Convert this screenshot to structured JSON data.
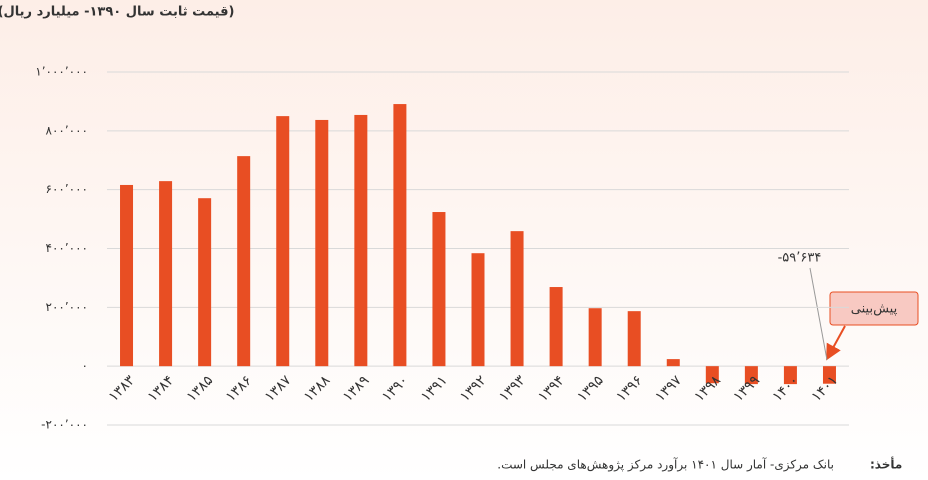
{
  "chart_data": {
    "type": "bar",
    "title": "(قیمت ثابت سال ۱۳۹۰- میلیارد ریال)",
    "categories": [
      "۱۳۸۳",
      "۱۳۸۴",
      "۱۳۸۵",
      "۱۳۸۶",
      "۱۳۸۷",
      "۱۳۸۸",
      "۱۳۸۹",
      "۱۳۹۰",
      "۱۳۹۱",
      "۱۳۹۲",
      "۱۳۹۳",
      "۱۳۹۴",
      "۱۳۹۵",
      "۱۳۹۶",
      "۱۳۹۷",
      "۱۳۹۸",
      "۱۳۹۹",
      "۱۴۰۰",
      "۱۴۰۱"
    ],
    "values": [
      616000,
      629000,
      571000,
      714000,
      850000,
      837000,
      854000,
      891000,
      524000,
      384000,
      459000,
      269000,
      197000,
      187000,
      24000,
      -58000,
      -61000,
      -61000,
      -59634
    ],
    "value_labels": [
      null,
      null,
      null,
      null,
      null,
      null,
      null,
      null,
      null,
      null,
      null,
      null,
      null,
      null,
      null,
      null,
      null,
      null,
      "-۵۹’۶۳۴"
    ],
    "color": "#e84e23",
    "ylim": [
      -200000,
      1000000
    ],
    "yticks": [
      {
        "value": -200000,
        "label": "-۲۰۰’۰۰۰"
      },
      {
        "value": 0,
        "label": "۰"
      },
      {
        "value": 200000,
        "label": "۲۰۰’۰۰۰"
      },
      {
        "value": 400000,
        "label": "۴۰۰’۰۰۰"
      },
      {
        "value": 600000,
        "label": "۶۰۰’۰۰۰"
      },
      {
        "value": 800000,
        "label": "۸۰۰’۰۰۰"
      },
      {
        "value": 1000000,
        "label": "۱’۰۰۰’۰۰۰"
      }
    ],
    "grid": true,
    "callout": "پیش‌بینی",
    "source_label": "مأخذ:",
    "source": "بانک مرکزی- آمار سال ۱۴۰۱ برآورد مرکز پژوهش‌های مجلس است."
  }
}
